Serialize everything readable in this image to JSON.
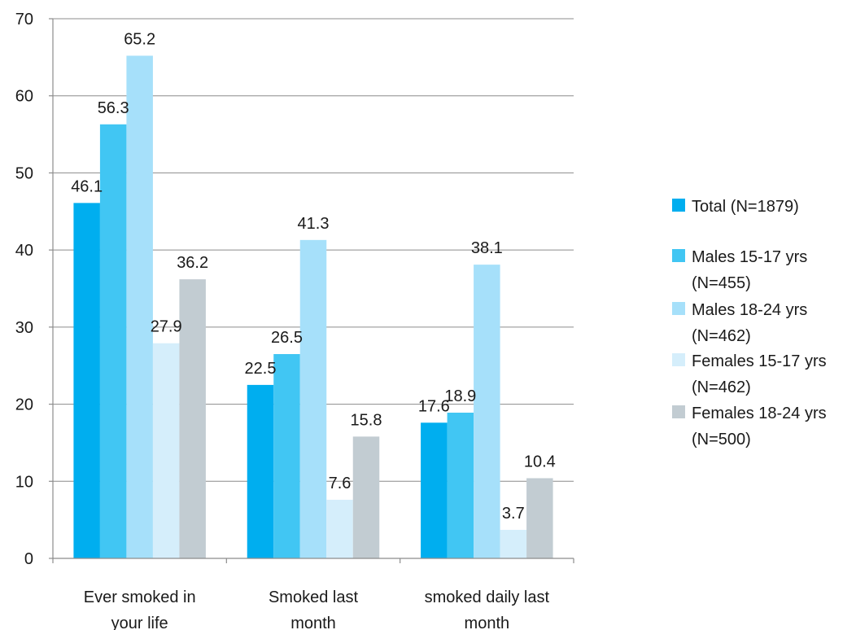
{
  "chart_data": {
    "type": "bar",
    "categories": [
      [
        "Ever smoked in",
        "your life"
      ],
      [
        "Smoked last",
        "month"
      ],
      [
        "smoked daily last",
        "month"
      ]
    ],
    "series": [
      {
        "name": "Total (N=1879)",
        "legend_lines": [
          "Total (N=1879)"
        ],
        "color": "#00aeef",
        "values": [
          46.1,
          22.5,
          17.6
        ]
      },
      {
        "name": "Males 15-17 yrs (N=455)",
        "legend_lines": [
          "Males 15-17 yrs",
          "(N=455)"
        ],
        "color": "#41c6f3",
        "values": [
          56.3,
          26.5,
          18.9
        ]
      },
      {
        "name": "Males 18-24 yrs (N=462)",
        "legend_lines": [
          "Males 18-24 yrs",
          "(N=462)"
        ],
        "color": "#a6e0fa",
        "values": [
          65.2,
          41.3,
          38.1
        ]
      },
      {
        "name": "Females 15-17 yrs (N=462)",
        "legend_lines": [
          "Females 15-17 yrs",
          "(N=462)"
        ],
        "color": "#d5eefb",
        "values": [
          27.9,
          7.6,
          3.7
        ]
      },
      {
        "name": "Females 18-24 yrs (N=500)",
        "legend_lines": [
          "Females 18-24 yrs",
          "(N=500)"
        ],
        "color": "#c2ccd2",
        "values": [
          36.2,
          15.8,
          10.4
        ]
      }
    ],
    "data_labels": [
      [
        "46.1",
        "22.5",
        "17.6"
      ],
      [
        "56.3",
        "26.5",
        "18.9"
      ],
      [
        "65.2",
        "41.3",
        "38.1"
      ],
      [
        "27.9",
        "7.6",
        "3.7"
      ],
      [
        "36.2",
        "15.8",
        "10.4"
      ]
    ],
    "yticks": [
      0,
      10,
      20,
      30,
      40,
      50,
      60,
      70
    ],
    "ylim": [
      0,
      70
    ],
    "grid": true,
    "legend_position": "right",
    "title": "",
    "xlabel": "",
    "ylabel": ""
  }
}
